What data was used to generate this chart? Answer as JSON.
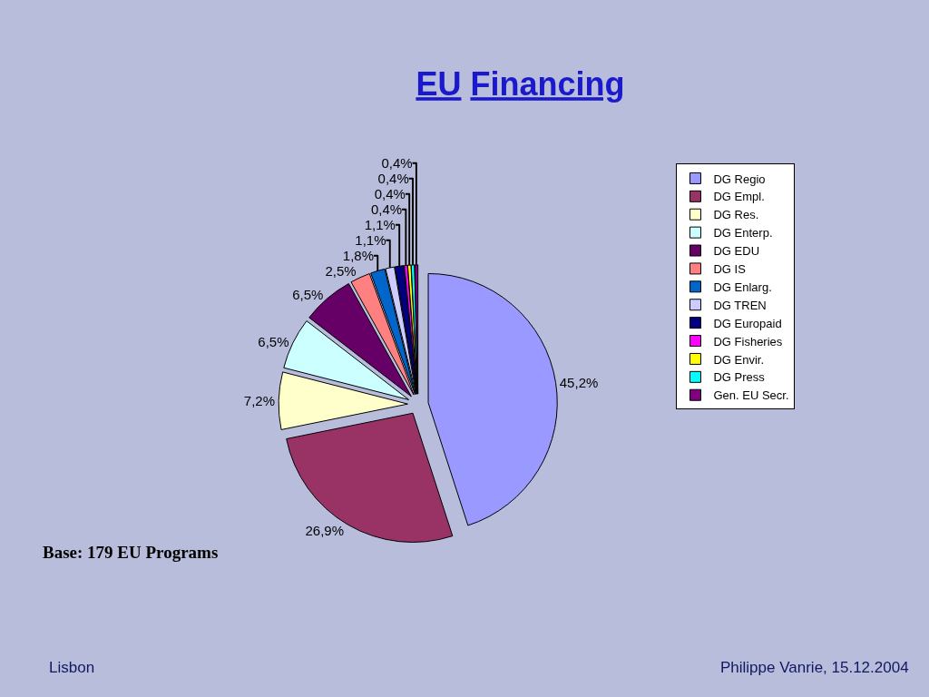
{
  "chart_data": {
    "type": "pie",
    "title": "EU Financing",
    "categories": [
      "DG Regio",
      "DG Empl.",
      "DG Res.",
      "DG Enterp.",
      "DG EDU",
      "DG IS",
      "DG Enlarg.",
      "DG TREN",
      "DG Europaid",
      "DG Fisheries",
      "DG Envir.",
      "DG Press",
      "Gen. EU Secr."
    ],
    "values": [
      45.2,
      26.9,
      7.2,
      6.5,
      6.5,
      2.5,
      1.8,
      1.1,
      1.1,
      0.4,
      0.4,
      0.4,
      0.4
    ],
    "colors": [
      "#9999ff",
      "#993366",
      "#ffffcc",
      "#ccffff",
      "#660066",
      "#ff8080",
      "#0066cc",
      "#ccccff",
      "#000080",
      "#ff00ff",
      "#ffff00",
      "#00ffff",
      "#800080"
    ],
    "value_labels": [
      "45,2%",
      "26,9%",
      "7,2%",
      "6,5%",
      "6,5%",
      "2,5%",
      "1,8%",
      "1,1%",
      "1,1%",
      "0,4%",
      "0,4%",
      "0,4%",
      "0,4%"
    ],
    "legend": "right",
    "annotations": [
      "Base: 179 EU Programs",
      "Lisbon",
      "Philippe Vanrie, 15.12.2004"
    ]
  }
}
